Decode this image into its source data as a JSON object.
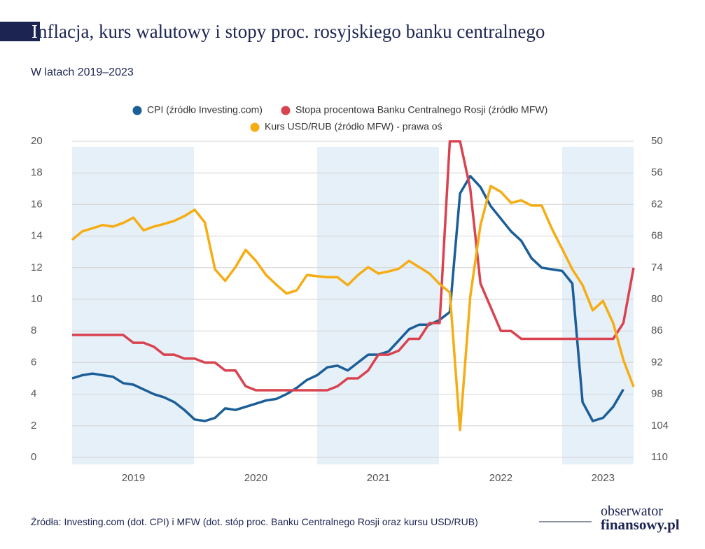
{
  "chart_data": {
    "type": "line",
    "title": "Inflacja, kurs walutowy i stopy proc. rosyjskiego banku centralnego",
    "subtitle": "W latach 2019–2023",
    "source": "Źródła: Investing.com (dot. CPI) i MFW (dot. stóp proc. Banku Centralnego Rosji oraz kursu USD/RUB)",
    "categories": [
      null,
      null,
      null,
      null,
      null,
      null,
      "2019",
      null,
      null,
      null,
      null,
      null,
      null,
      null,
      null,
      null,
      null,
      null,
      "2020",
      null,
      null,
      null,
      null,
      null,
      null,
      null,
      null,
      null,
      null,
      null,
      "2021",
      null,
      null,
      null,
      null,
      null,
      null,
      null,
      null,
      null,
      null,
      null,
      "2022",
      null,
      null,
      null,
      null,
      null,
      null,
      null,
      null,
      null,
      "2023",
      null,
      null,
      null
    ],
    "series": [
      {
        "name": "CPI (źródło Investing.com)",
        "color": "#1b5e98",
        "values": [
          5.0,
          5.2,
          5.3,
          5.2,
          5.1,
          4.7,
          4.6,
          4.3,
          4.0,
          3.8,
          3.5,
          3.0,
          2.4,
          2.3,
          2.5,
          3.1,
          3.0,
          3.2,
          3.4,
          3.6,
          3.7,
          4.0,
          4.4,
          4.9,
          5.2,
          5.7,
          5.8,
          5.5,
          6.0,
          6.5,
          6.5,
          6.7,
          7.4,
          8.1,
          8.4,
          8.4,
          8.7,
          9.2,
          16.7,
          17.8,
          17.1,
          15.9,
          15.1,
          14.3,
          13.7,
          12.6,
          12.0,
          11.9,
          11.8,
          11.0,
          3.5,
          2.3,
          2.5,
          3.2,
          4.3,
          null
        ]
      },
      {
        "name": "Stopa procentowa Banku Centralnego Rosji (źródło MFW)",
        "color": "#d9434f",
        "values": [
          7.75,
          7.75,
          7.75,
          7.75,
          7.75,
          7.75,
          7.25,
          7.25,
          7.0,
          6.5,
          6.5,
          6.25,
          6.25,
          6.0,
          6.0,
          5.5,
          5.5,
          4.5,
          4.25,
          4.25,
          4.25,
          4.25,
          4.25,
          4.25,
          4.25,
          4.25,
          4.5,
          5.0,
          5.0,
          5.5,
          6.5,
          6.5,
          6.75,
          7.5,
          7.5,
          8.5,
          8.5,
          20,
          20,
          17,
          11,
          9.5,
          8,
          8,
          7.5,
          7.5,
          7.5,
          7.5,
          7.5,
          7.5,
          7.5,
          7.5,
          7.5,
          7.5,
          8.5,
          12
        ]
      },
      {
        "name": "Kurs USD/RUB (źródło MFW) - prawa oś",
        "color": "#f6ad14",
        "axis": "y2",
        "values": [
          68.7,
          67.1,
          66.5,
          65.9,
          66.2,
          65.5,
          64.5,
          66.9,
          66.2,
          65.7,
          65.1,
          64.2,
          63.0,
          65.4,
          74.3,
          76.5,
          73.9,
          70.6,
          72.7,
          75.4,
          77.2,
          78.9,
          78.3,
          75.4,
          75.6,
          75.8,
          75.8,
          77.3,
          75.4,
          73.9,
          75.1,
          74.7,
          74.2,
          72.7,
          73.9,
          75.1,
          77.1,
          78.7,
          104.8,
          79.5,
          65.9,
          58.5,
          59.6,
          61.7,
          61.2,
          62.2,
          62.2,
          66.6,
          70.4,
          74.3,
          77.3,
          82.1,
          80.3,
          84.5,
          91.5,
          96.6
        ]
      }
    ],
    "ylim": [
      0,
      20
    ],
    "yticks": [
      0,
      2,
      4,
      6,
      8,
      10,
      12,
      14,
      16,
      18,
      20
    ],
    "y2lim": [
      110,
      50
    ],
    "y2ticks": [
      110,
      104,
      98,
      92,
      86,
      80,
      74,
      68,
      62,
      56,
      50
    ],
    "grid": true
  },
  "logo": [
    "obserwator",
    "finansowy.pl"
  ]
}
